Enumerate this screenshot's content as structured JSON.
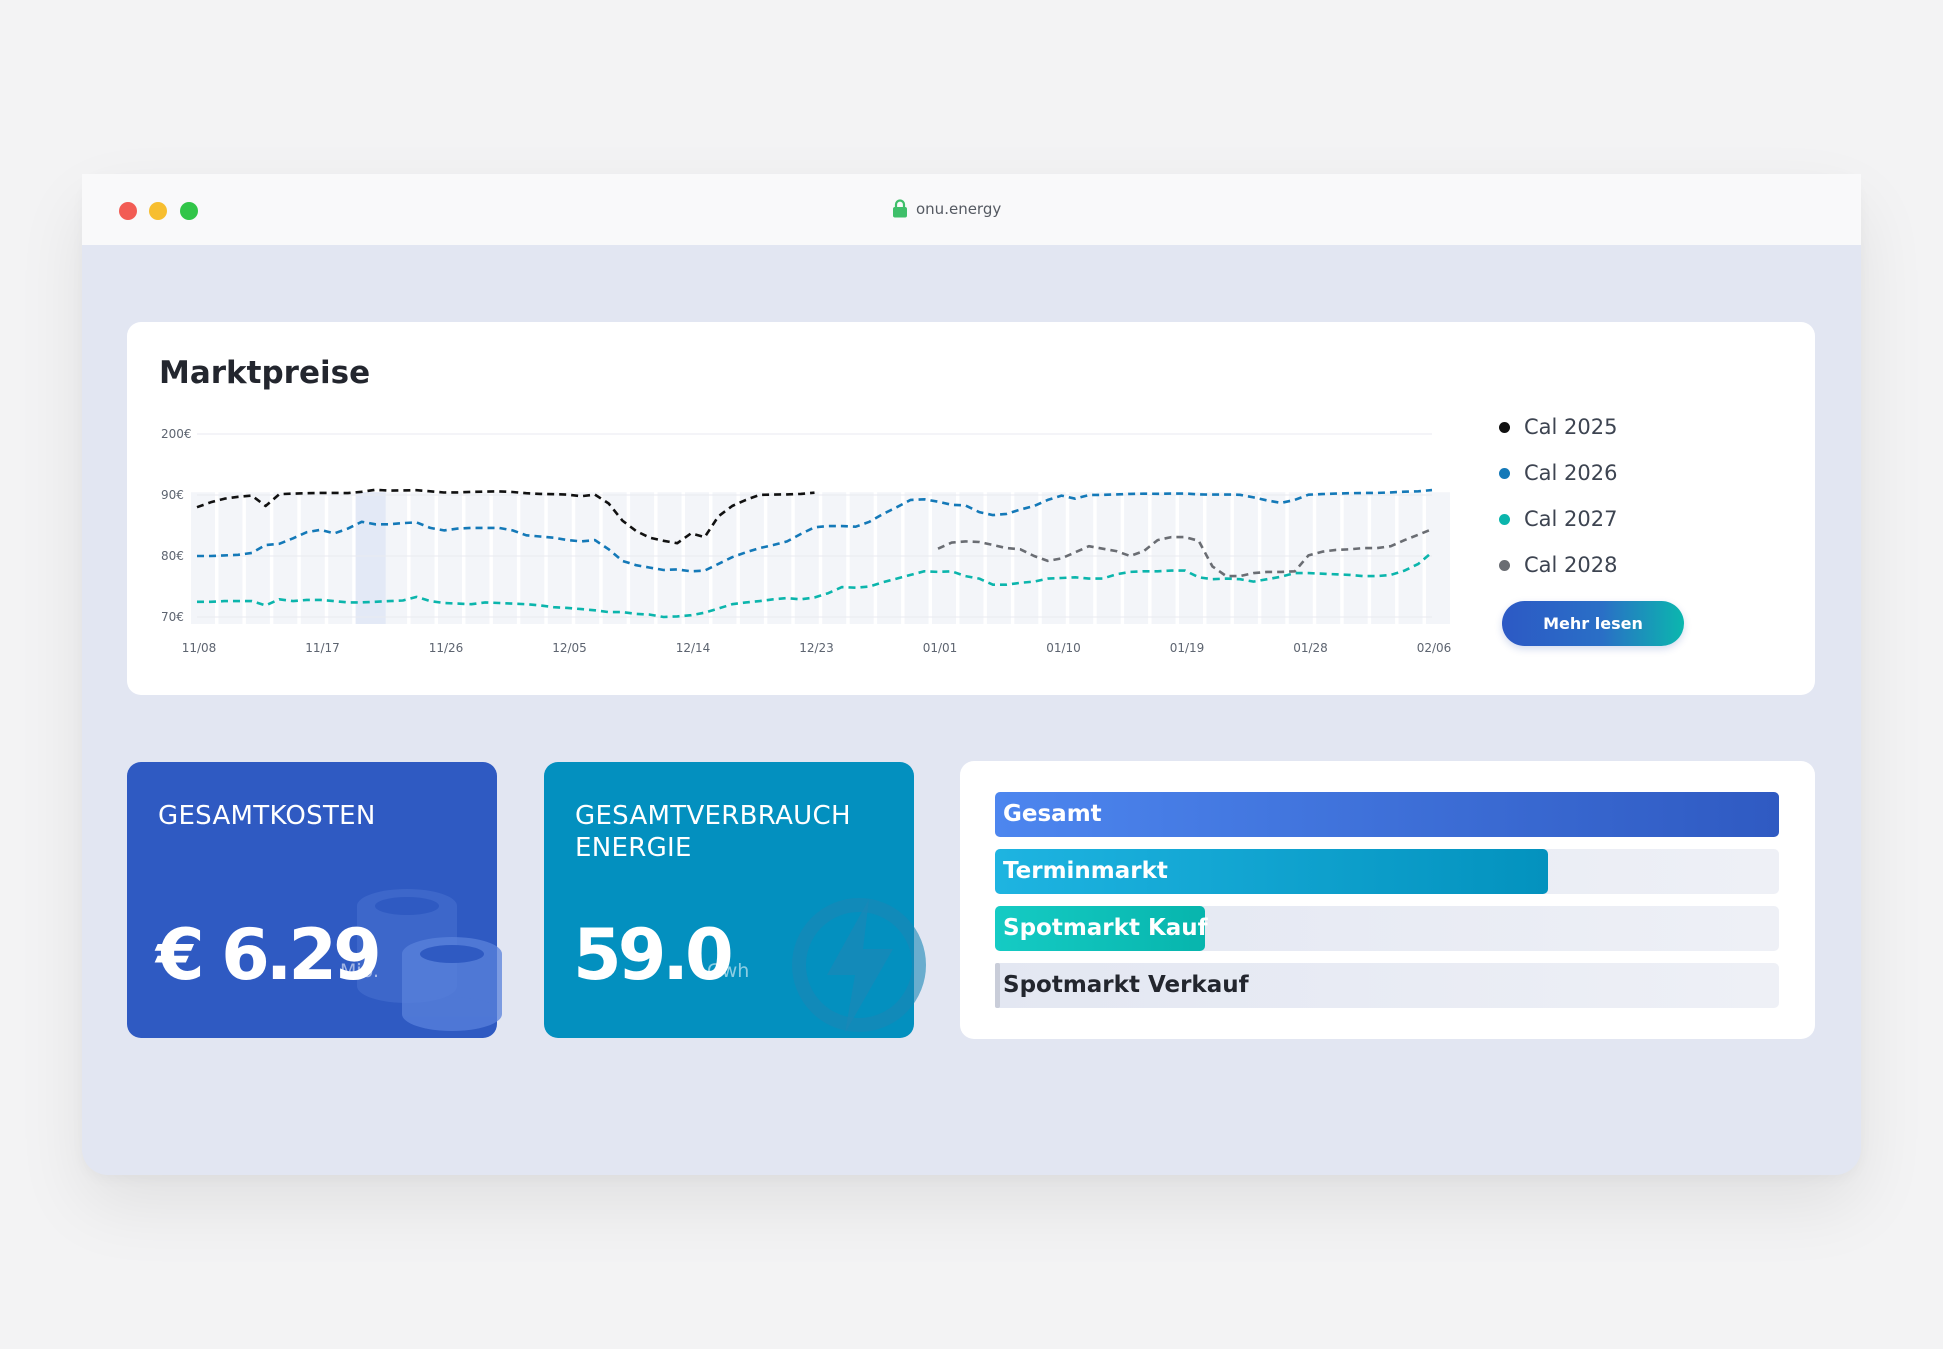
{
  "browser": {
    "url": "onu.energy"
  },
  "market": {
    "title": "Marktpreise",
    "more_label": "Mehr lesen",
    "chart_data": {
      "type": "line",
      "title": "Marktpreise",
      "x": [
        "11/08",
        "11/09",
        "11/10",
        "11/11",
        "11/12",
        "11/13",
        "11/14",
        "11/15",
        "11/16",
        "11/17",
        "11/18",
        "11/19",
        "11/20",
        "11/21",
        "11/22",
        "11/23",
        "11/24",
        "11/25",
        "11/26",
        "11/27",
        "11/28",
        "11/29",
        "11/30",
        "12/01",
        "12/02",
        "12/03",
        "12/04",
        "12/05",
        "12/06",
        "12/07",
        "12/08",
        "12/09",
        "12/10",
        "12/11",
        "12/12",
        "12/13",
        "12/14",
        "12/15",
        "12/16",
        "12/17",
        "12/18",
        "12/19",
        "12/20",
        "12/21",
        "12/22",
        "12/23",
        "12/24",
        "12/25",
        "12/26",
        "12/27",
        "12/28",
        "12/29",
        "12/30",
        "12/31",
        "01/01",
        "01/02",
        "01/03",
        "01/04",
        "01/05",
        "01/06",
        "01/07",
        "01/08",
        "01/09",
        "01/10",
        "01/11",
        "01/12",
        "01/13",
        "01/14",
        "01/15",
        "01/16",
        "01/17",
        "01/18",
        "01/19",
        "01/20",
        "01/21",
        "01/22",
        "01/23",
        "01/24",
        "01/25",
        "01/26",
        "01/27",
        "01/28",
        "01/29",
        "01/30",
        "01/31",
        "02/01",
        "02/02",
        "02/03",
        "02/04",
        "02/05",
        "02/06"
      ],
      "xticks": [
        "11/08",
        "11/17",
        "11/26",
        "12/05",
        "12/14",
        "12/23",
        "01/01",
        "01/10",
        "01/19",
        "01/28",
        "02/06"
      ],
      "yticks": [
        {
          "value": 70,
          "label": "70€"
        },
        {
          "value": 80,
          "label": "80€"
        },
        {
          "value": 90,
          "label": "90€"
        },
        {
          "value": 200,
          "label": "200€"
        }
      ],
      "series": [
        {
          "name": "Cal 2025",
          "color": "#111111",
          "values": [
            88,
            88.8,
            89.4,
            89.7,
            89.9,
            88.2,
            91.5,
            92.5,
            93.2,
            93.8,
            93.8,
            93.4,
            95.8,
            99.3,
            97.9,
            98.3,
            98.7,
            96.6,
            94.5,
            94.6,
            95.6,
            96.2,
            96.5,
            95.4,
            93.2,
            92,
            91.5,
            90.8,
            89.8,
            90.8,
            88.6,
            85.8,
            84.1,
            83,
            82.5,
            82.1,
            83.7,
            83.1,
            86.5,
            88.2,
            89.2,
            90.2,
            90.7,
            91,
            92,
            94.2,
            null,
            null,
            null,
            null,
            null,
            null,
            null,
            null,
            null,
            null,
            null,
            null,
            null,
            null,
            null,
            null,
            null,
            null,
            null,
            null,
            null,
            null,
            null,
            null,
            null,
            null,
            null,
            null,
            null,
            null,
            null,
            null,
            null,
            null,
            null,
            null,
            null,
            null,
            null,
            null,
            null,
            null,
            null,
            null,
            null
          ]
        },
        {
          "name": "Cal 2026",
          "color": "#1479b8",
          "values": [
            80,
            80,
            80.1,
            80.2,
            80.5,
            81.8,
            82,
            82.9,
            83.9,
            84.3,
            83.7,
            84.5,
            85.6,
            85.2,
            85.2,
            85.4,
            85.5,
            84.6,
            84.2,
            84.5,
            84.6,
            84.6,
            84.6,
            84.2,
            83.4,
            83.2,
            83,
            82.6,
            82.4,
            82.6,
            81.1,
            79.2,
            78.5,
            78.1,
            77.7,
            77.8,
            77.5,
            77.6,
            78.7,
            79.8,
            80.6,
            81.3,
            81.8,
            82.4,
            83.6,
            84.7,
            84.9,
            84.9,
            84.8,
            85.6,
            86.9,
            88,
            89.2,
            89.3,
            88.9,
            88.4,
            88.3,
            87.2,
            86.7,
            86.9,
            87.6,
            88.2,
            89.2,
            89.9,
            89.4,
            90,
            90.2,
            91,
            91.9,
            92.4,
            92.2,
            92.5,
            92.7,
            91,
            90.8,
            90.9,
            90.4,
            89.6,
            89.1,
            88.7,
            89.2,
            90.5,
            91.6,
            92.6,
            93.3,
            93.6,
            93.7,
            94.6,
            96,
            96.7,
            98.8
          ]
        },
        {
          "name": "Cal 2027",
          "color": "#0bb5ac",
          "values": [
            72.5,
            72.5,
            72.6,
            72.6,
            72.6,
            71.9,
            72.9,
            72.6,
            72.8,
            72.8,
            72.6,
            72.4,
            72.4,
            72.5,
            72.6,
            72.7,
            73.3,
            72.6,
            72.3,
            72.2,
            72.1,
            72.4,
            72.3,
            72.2,
            72.1,
            71.9,
            71.6,
            71.5,
            71.3,
            71.1,
            70.8,
            70.8,
            70.5,
            70.4,
            70,
            70.1,
            70.3,
            70.7,
            71.4,
            72.1,
            72.4,
            72.6,
            72.9,
            73.1,
            72.9,
            73.2,
            73.9,
            74.9,
            74.8,
            75,
            75.7,
            76.3,
            76.9,
            77.5,
            77.4,
            77.5,
            76.7,
            76.3,
            75.3,
            75.3,
            75.6,
            75.8,
            76.3,
            76.4,
            76.5,
            76.3,
            76.3,
            77,
            77.4,
            77.5,
            77.5,
            77.6,
            77.6,
            76.5,
            76.2,
            76.3,
            76.2,
            75.8,
            76.2,
            76.6,
            77.2,
            77.2,
            77.1,
            77,
            76.9,
            76.7,
            76.7,
            76.9,
            77.6,
            78.7,
            80.6
          ]
        },
        {
          "name": "Cal 2028",
          "color": "#6a6d73",
          "values": [
            null,
            null,
            null,
            null,
            null,
            null,
            null,
            null,
            null,
            null,
            null,
            null,
            null,
            null,
            null,
            null,
            null,
            null,
            null,
            null,
            null,
            null,
            null,
            null,
            null,
            null,
            null,
            null,
            null,
            null,
            null,
            null,
            null,
            null,
            null,
            null,
            null,
            null,
            null,
            null,
            null,
            null,
            null,
            null,
            null,
            null,
            null,
            null,
            null,
            null,
            null,
            null,
            null,
            null,
            81.2,
            82.2,
            82.4,
            82.3,
            81.8,
            81.3,
            81.1,
            80,
            79.2,
            79.6,
            80.6,
            81.6,
            81.2,
            80.8,
            80,
            80.8,
            82.6,
            83.1,
            83.1,
            82.5,
            78.3,
            76.7,
            76.7,
            77.2,
            77.4,
            77.4,
            77.5,
            80.1,
            80.7,
            81,
            81.1,
            81.3,
            81.3,
            81.6,
            82.6,
            83.5,
            84.4
          ]
        }
      ],
      "legend_position": "right",
      "grid": true
    }
  },
  "stats": {
    "costs": {
      "title": "GESAMTKOSTEN",
      "value": "€ 6.29",
      "unit": "Mio."
    },
    "usage": {
      "title": "GESAMTVERBRAUCH\nENERGIE",
      "value": "59.0",
      "unit": "Gwh"
    }
  },
  "bars": [
    {
      "label": "Gesamt",
      "fraction": 1.0,
      "color_from": "#4d86ef",
      "color_to": "#2f5ac2",
      "dark": false
    },
    {
      "label": "Terminmarkt",
      "fraction": 0.705,
      "color_from": "#1eb4e1",
      "color_to": "#0392be",
      "dark": false
    },
    {
      "label": "Spotmarkt Kauf",
      "fraction": 0.268,
      "color_from": "#15cbc4",
      "color_to": "#07b5ad",
      "dark": false
    },
    {
      "label": "Spotmarkt Verkauf",
      "fraction": 0.006,
      "color_from": "#c9cdd9",
      "color_to": "#c9cdd9",
      "dark": true
    }
  ]
}
